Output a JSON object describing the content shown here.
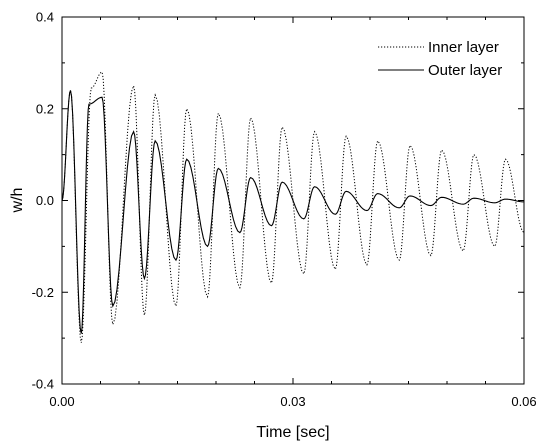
{
  "chart_data": {
    "type": "line",
    "xlabel": "Time [sec]",
    "ylabel": "w/h",
    "xlim": [
      0.0,
      0.06
    ],
    "ylim": [
      -0.4,
      0.4
    ],
    "x_ticks": [
      0.0,
      0.03,
      0.06
    ],
    "x_tick_labels": [
      "0.00",
      "0.03",
      "0.06"
    ],
    "x_minor_step": 0.005,
    "y_ticks": [
      -0.4,
      -0.2,
      0.0,
      0.2,
      0.4
    ],
    "y_tick_labels": [
      "-0.4",
      "-0.2",
      "0.0",
      "0.2",
      "0.4"
    ],
    "y_minor_step": 0.1,
    "grid": false,
    "legend_position": "top-right",
    "series": [
      {
        "name": "Inner layer",
        "style": "dotted",
        "color": "#000000",
        "peaks": [
          {
            "x": 0.0011,
            "y": 0.24
          },
          {
            "x": 0.0038,
            "y": 0.245
          },
          {
            "x": 0.0052,
            "y": 0.28
          },
          {
            "x": 0.0093,
            "y": 0.25
          },
          {
            "x": 0.0121,
            "y": 0.23
          },
          {
            "x": 0.0162,
            "y": 0.2
          },
          {
            "x": 0.0203,
            "y": 0.19
          },
          {
            "x": 0.0245,
            "y": 0.18
          },
          {
            "x": 0.0286,
            "y": 0.16
          },
          {
            "x": 0.0328,
            "y": 0.15
          },
          {
            "x": 0.0369,
            "y": 0.14
          },
          {
            "x": 0.041,
            "y": 0.13
          },
          {
            "x": 0.0452,
            "y": 0.12
          },
          {
            "x": 0.0493,
            "y": 0.11
          },
          {
            "x": 0.0535,
            "y": 0.1
          },
          {
            "x": 0.0576,
            "y": 0.09
          }
        ],
        "troughs": [
          {
            "x": 0.0025,
            "y": -0.31
          },
          {
            "x": 0.0066,
            "y": -0.27
          },
          {
            "x": 0.0107,
            "y": -0.25
          },
          {
            "x": 0.0148,
            "y": -0.23
          },
          {
            "x": 0.0189,
            "y": -0.21
          },
          {
            "x": 0.0231,
            "y": -0.19
          },
          {
            "x": 0.0272,
            "y": -0.18
          },
          {
            "x": 0.0314,
            "y": -0.16
          },
          {
            "x": 0.0355,
            "y": -0.15
          },
          {
            "x": 0.0396,
            "y": -0.14
          },
          {
            "x": 0.0438,
            "y": -0.13
          },
          {
            "x": 0.0479,
            "y": -0.12
          },
          {
            "x": 0.0521,
            "y": -0.11
          },
          {
            "x": 0.0562,
            "y": -0.1
          },
          {
            "x": 0.06,
            "y": -0.07
          }
        ]
      },
      {
        "name": "Outer layer",
        "style": "solid",
        "color": "#000000",
        "peaks": [
          {
            "x": 0.0011,
            "y": 0.24
          },
          {
            "x": 0.0035,
            "y": 0.21
          },
          {
            "x": 0.0052,
            "y": 0.225
          },
          {
            "x": 0.0093,
            "y": 0.15
          },
          {
            "x": 0.0121,
            "y": 0.13
          },
          {
            "x": 0.0162,
            "y": 0.09
          },
          {
            "x": 0.0203,
            "y": 0.07
          },
          {
            "x": 0.0245,
            "y": 0.05
          },
          {
            "x": 0.0286,
            "y": 0.04
          },
          {
            "x": 0.0328,
            "y": 0.03
          },
          {
            "x": 0.0369,
            "y": 0.02
          },
          {
            "x": 0.041,
            "y": 0.015
          },
          {
            "x": 0.0452,
            "y": 0.01
          },
          {
            "x": 0.0493,
            "y": 0.007
          },
          {
            "x": 0.0535,
            "y": 0.005
          },
          {
            "x": 0.0576,
            "y": 0.003
          }
        ],
        "troughs": [
          {
            "x": 0.0025,
            "y": -0.29
          },
          {
            "x": 0.0066,
            "y": -0.23
          },
          {
            "x": 0.0107,
            "y": -0.17
          },
          {
            "x": 0.0148,
            "y": -0.13
          },
          {
            "x": 0.0189,
            "y": -0.1
          },
          {
            "x": 0.0231,
            "y": -0.07
          },
          {
            "x": 0.0272,
            "y": -0.055
          },
          {
            "x": 0.0314,
            "y": -0.04
          },
          {
            "x": 0.0355,
            "y": -0.03
          },
          {
            "x": 0.0396,
            "y": -0.022
          },
          {
            "x": 0.0438,
            "y": -0.016
          },
          {
            "x": 0.0479,
            "y": -0.011
          },
          {
            "x": 0.0521,
            "y": -0.008
          },
          {
            "x": 0.0562,
            "y": -0.005
          },
          {
            "x": 0.06,
            "y": -0.003
          }
        ]
      }
    ]
  }
}
